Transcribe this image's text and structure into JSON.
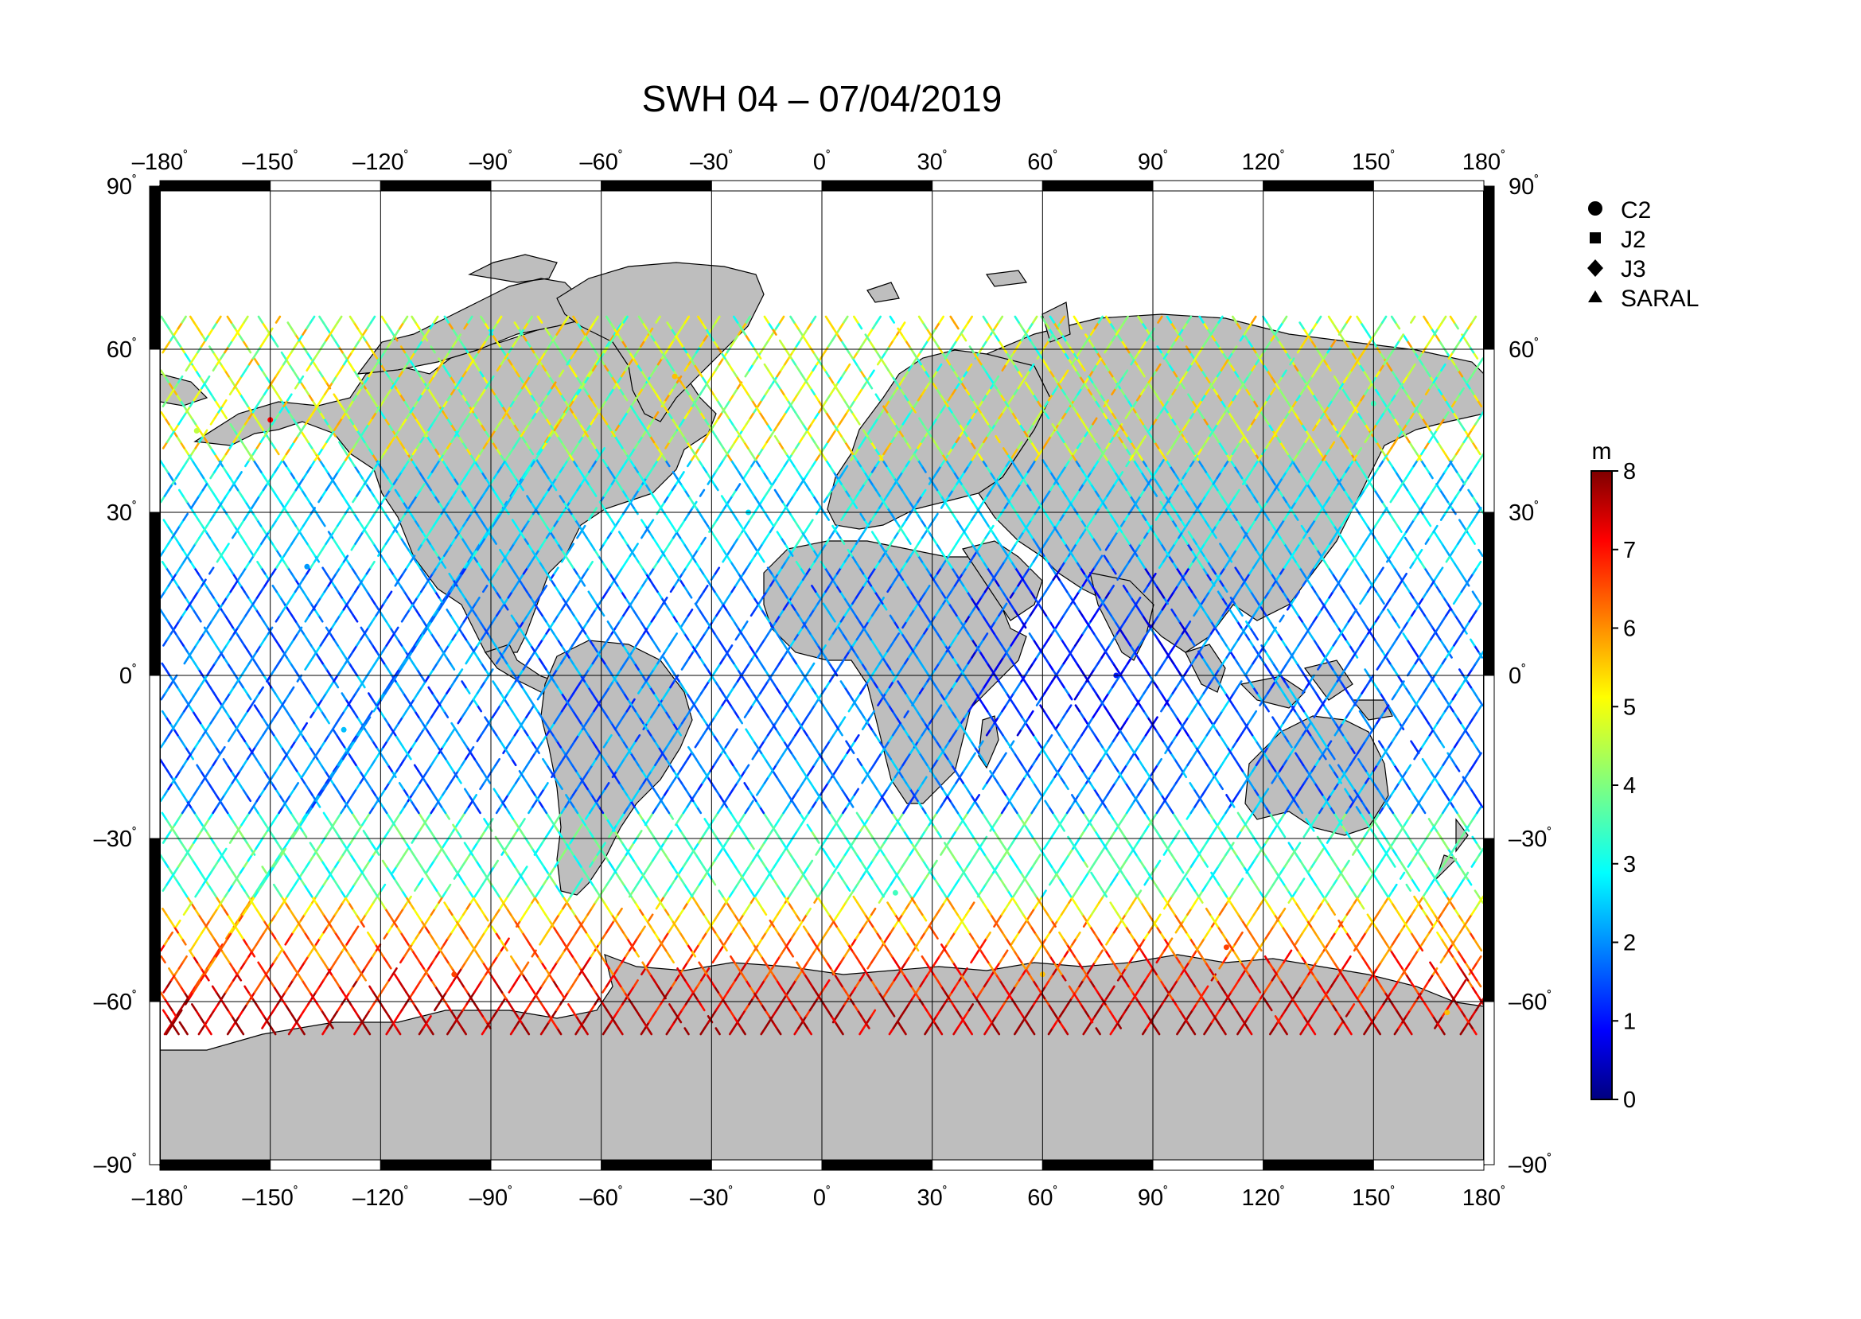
{
  "title": "SWH 04 – 07/04/2019",
  "map": {
    "projection": "equirectangular",
    "lon_range": [
      -180,
      180
    ],
    "lat_range": [
      -90,
      90
    ],
    "lon_ticks": [
      {
        "value": -180,
        "label": "–180"
      },
      {
        "value": -150,
        "label": "–150"
      },
      {
        "value": -120,
        "label": "–120"
      },
      {
        "value": -90,
        "label": "–90"
      },
      {
        "value": -60,
        "label": "–60"
      },
      {
        "value": -30,
        "label": "–30"
      },
      {
        "value": 0,
        "label": "0"
      },
      {
        "value": 30,
        "label": "30"
      },
      {
        "value": 60,
        "label": "60"
      },
      {
        "value": 90,
        "label": "90"
      },
      {
        "value": 120,
        "label": "120"
      },
      {
        "value": 150,
        "label": "150"
      },
      {
        "value": 180,
        "label": "180"
      }
    ],
    "lat_ticks": [
      {
        "value": 90,
        "label": "90"
      },
      {
        "value": 60,
        "label": "60"
      },
      {
        "value": 30,
        "label": "30"
      },
      {
        "value": 0,
        "label": "0"
      },
      {
        "value": -30,
        "label": "–30"
      },
      {
        "value": -60,
        "label": "–60"
      },
      {
        "value": -90,
        "label": "–90"
      }
    ],
    "degree_mark": "˚",
    "grid": true,
    "land_color": "#bebebe",
    "ocean_color": "#ffffff"
  },
  "legend": {
    "placement": "top-right",
    "items": [
      {
        "symbol": "circle",
        "label": "C2"
      },
      {
        "symbol": "square",
        "label": "J2"
      },
      {
        "symbol": "diamond",
        "label": "J3"
      },
      {
        "symbol": "triangle",
        "label": "SARAL"
      }
    ]
  },
  "colorbar": {
    "unit": "m",
    "min": 0,
    "max": 8,
    "ticks": [
      "0",
      "1",
      "2",
      "3",
      "4",
      "5",
      "6",
      "7",
      "8"
    ],
    "colormap": "jet"
  },
  "chart_data": {
    "type": "scatter",
    "variable": "SWH",
    "units": "m",
    "description_of_marks": "satellite altimeter ground tracks colored by significant wave height",
    "sample_points": [
      {
        "lon": -170,
        "lat": 45,
        "swh": 4.5
      },
      {
        "lon": -150,
        "lat": 47,
        "swh": 7.0
      },
      {
        "lon": -140,
        "lat": 20,
        "swh": 2.2
      },
      {
        "lon": -130,
        "lat": -10,
        "swh": 2.5
      },
      {
        "lon": -100,
        "lat": -55,
        "swh": 6.5
      },
      {
        "lon": -40,
        "lat": 55,
        "swh": 5.5
      },
      {
        "lon": -20,
        "lat": 30,
        "swh": 2.8
      },
      {
        "lon": 20,
        "lat": -40,
        "swh": 3.5
      },
      {
        "lon": 60,
        "lat": -55,
        "swh": 5.5
      },
      {
        "lon": 80,
        "lat": 0,
        "swh": 1.2
      },
      {
        "lon": 110,
        "lat": -50,
        "swh": 6.5
      },
      {
        "lon": 150,
        "lat": 50,
        "swh": 3.5
      },
      {
        "lon": 170,
        "lat": -62,
        "swh": 5.5
      }
    ]
  }
}
